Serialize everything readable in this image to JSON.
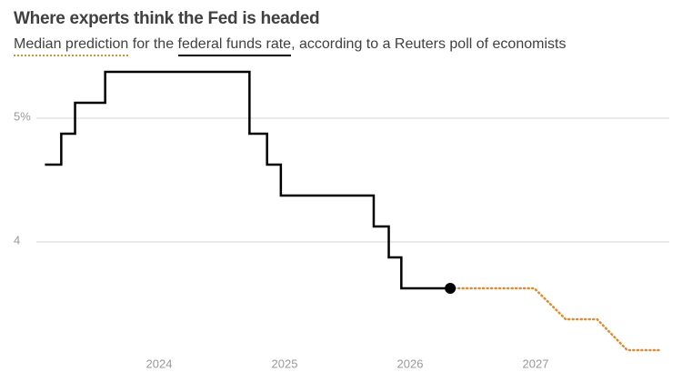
{
  "chart_data": {
    "type": "line",
    "title": "Where experts think the Fed is headed",
    "subtitle_parts": [
      " for the ",
      ", according to a Reuters poll of economists"
    ],
    "xlim": [
      2023,
      2028
    ],
    "xticks": [
      2024,
      2025,
      2026,
      2027
    ],
    "ylim": [
      3.0,
      5.6
    ],
    "yticks": [
      {
        "value": 5,
        "label": "5%"
      },
      4
    ],
    "grid": true,
    "series": [
      {
        "name": "federal funds rate",
        "color": "#000000",
        "step": true,
        "x": [
          2023.09,
          2023.22,
          2023.33,
          2023.57,
          2024.72,
          2024.86,
          2024.97,
          2025.71,
          2025.83,
          2025.93,
          2026.32
        ],
        "values": [
          4.625,
          4.875,
          5.125,
          5.375,
          4.875,
          4.625,
          4.375,
          4.125,
          3.875,
          3.625,
          3.625
        ]
      },
      {
        "name": "Median prediction",
        "color": "#e08a2e",
        "step": false,
        "x": [
          2026.32,
          2026.99,
          2027.24,
          2027.49,
          2027.73,
          2027.99
        ],
        "values": [
          3.625,
          3.625,
          3.375,
          3.375,
          3.125,
          3.125
        ]
      }
    ]
  }
}
